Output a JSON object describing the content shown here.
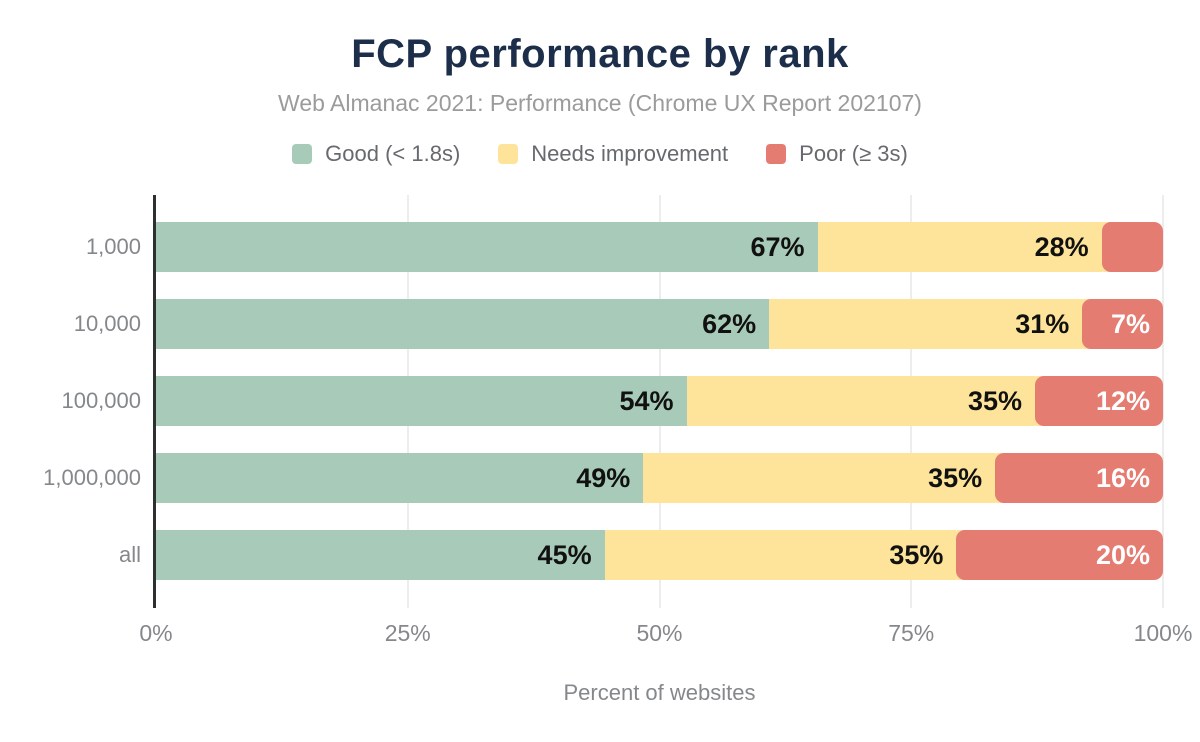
{
  "title": "FCP performance by rank",
  "subtitle": "Web Almanac 2021: Performance (Chrome UX Report 202107)",
  "legend": [
    {
      "label": "Good (< 1.8s)",
      "color": "#a8cab8"
    },
    {
      "label": "Needs improvement",
      "color": "#fde49a"
    },
    {
      "label": "Poor (≥ 3s)",
      "color": "#e57c72"
    }
  ],
  "colors": {
    "title": "#1d2e4a",
    "good": "#a8cab8",
    "needs_improvement": "#fde49a",
    "poor": "#e57c72",
    "axis": "#2e2f31",
    "gridline": "#ededed",
    "muted_text": "#85888b"
  },
  "chart_data": {
    "type": "bar",
    "orientation": "horizontal",
    "stacked": true,
    "title": "FCP performance by rank",
    "subtitle": "Web Almanac 2021: Performance (Chrome UX Report 202107)",
    "categories": [
      "1,000",
      "10,000",
      "100,000",
      "1,000,000",
      "all"
    ],
    "series": [
      {
        "name": "Good (< 1.8s)",
        "color": "#a8cab8",
        "values": [
          67,
          62,
          54,
          49,
          45
        ],
        "labels": [
          "67%",
          "62%",
          "54%",
          "49%",
          "45%"
        ],
        "label_color": "#111111"
      },
      {
        "name": "Needs improvement",
        "color": "#fde49a",
        "values": [
          28,
          31,
          35,
          35,
          35
        ],
        "labels": [
          "28%",
          "31%",
          "35%",
          "35%",
          "35%"
        ],
        "label_color": "#111111"
      },
      {
        "name": "Poor (≥ 3s)",
        "color": "#e57c72",
        "values": [
          5,
          7,
          12,
          16,
          20
        ],
        "labels": [
          "",
          "7%",
          "12%",
          "16%",
          "20%"
        ],
        "label_color": "#ffffff"
      }
    ],
    "xlabel": "Percent of websites",
    "ylabel": "",
    "x_ticks": [
      "0%",
      "25%",
      "50%",
      "75%",
      "100%"
    ],
    "x_tick_values": [
      0,
      25,
      50,
      75,
      100
    ],
    "xlim": [
      0,
      100
    ],
    "grid": true,
    "legend_position": "top"
  }
}
